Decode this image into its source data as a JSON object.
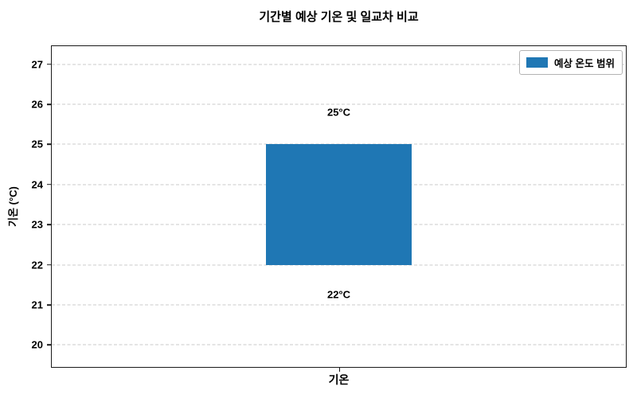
{
  "chart_data": {
    "type": "bar",
    "subtype": "floating-range-bar",
    "title": "기간별 예상 기온 및 일교차 비교",
    "categories": [
      "기온"
    ],
    "series": [
      {
        "name": "예상 온도 범위",
        "low": [
          22
        ],
        "high": [
          25
        ],
        "color": "#1f77b4"
      }
    ],
    "annotations": [
      {
        "text": "25°C",
        "x": "기온",
        "y": 25.8
      },
      {
        "text": "22°C",
        "x": "기온",
        "y": 21.25
      }
    ],
    "xlabel": "",
    "ylabel": "기온 (°C)",
    "ylim": [
      19.45,
      27.45
    ],
    "yticks": [
      20,
      21,
      22,
      23,
      24,
      25,
      26,
      27
    ],
    "grid": "horizontal-dashed",
    "legend": {
      "position": "upper right",
      "entries": [
        {
          "label": "예상 온도 범위",
          "color": "#1f77b4"
        }
      ]
    }
  },
  "colors": {
    "bar": "#1f77b4",
    "grid": "#cbcbcb",
    "spine": "#1a1a1a",
    "text": "#000000",
    "legend_border": "#b3b3b3"
  }
}
